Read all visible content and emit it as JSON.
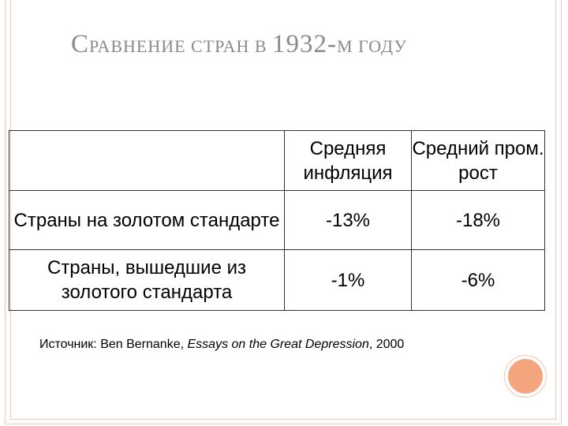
{
  "title": {
    "first_letter": "С",
    "rest": "равнение стран в ",
    "year": "1932-",
    "suffix": "м году"
  },
  "table": {
    "headers": [
      "",
      "Средняя инфляция",
      "Средний пром. рост"
    ],
    "rows": [
      {
        "label": "Страны на золотом стандарте",
        "inflation": "-13%",
        "growth": "-18%"
      },
      {
        "label": "Страны, вышедшие из золотого стандарта",
        "inflation": "-1%",
        "growth": "-6%"
      }
    ]
  },
  "source": {
    "prefix": "Источник: Ben Bernanke, ",
    "book": "Essays on the Great Depression",
    "suffix": ", 2000"
  },
  "colors": {
    "accent": "#f4a57e",
    "frame": "#f2c9b2",
    "title": "#8a8a8a"
  }
}
